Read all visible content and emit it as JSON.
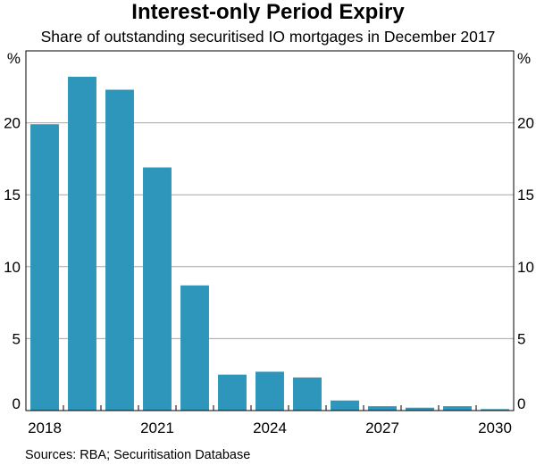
{
  "title": "Interest-only Period Expiry",
  "subtitle": "Share of outstanding securitised IO mortgages in December 2017",
  "source": "Sources: RBA; Securitisation Database",
  "chart_data": {
    "type": "bar",
    "title": "Interest-only Period Expiry",
    "subtitle": "Share of outstanding securitised IO mortgages in December 2017",
    "categories": [
      "2018",
      "2019",
      "2020",
      "2021",
      "2022",
      "2023",
      "2024",
      "2025",
      "2026",
      "2027",
      "2028",
      "2029",
      "2030"
    ],
    "values": [
      19.9,
      23.2,
      22.3,
      16.9,
      8.7,
      2.5,
      2.7,
      2.3,
      0.7,
      0.3,
      0.2,
      0.3,
      0.1
    ],
    "x_tick_labels": [
      "2018",
      "2021",
      "2024",
      "2027",
      "2030"
    ],
    "y_ticks": [
      "0",
      "5",
      "10",
      "15",
      "20"
    ],
    "y_unit_left": "%",
    "y_unit_right": "%",
    "ylim": [
      0,
      25
    ],
    "grid": true,
    "bar_color": "#2E96BA",
    "grid_color": "#A6A6A6"
  }
}
